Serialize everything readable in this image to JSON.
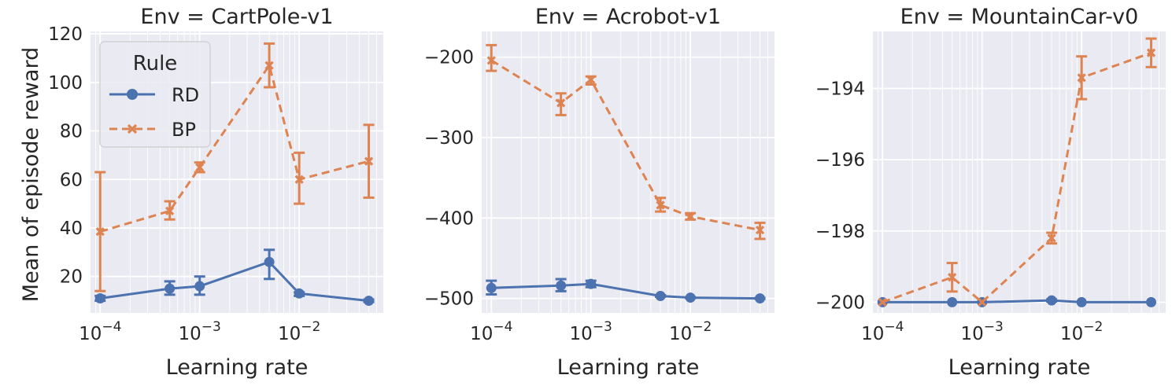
{
  "figure": {
    "ylabel": "Mean of episode reward",
    "legend": {
      "title": "Rule",
      "placement": "upper-left of first panel",
      "entries": [
        {
          "label": "RD",
          "color": "#4c72b0",
          "marker": "circle",
          "linestyle": "solid"
        },
        {
          "label": "BP",
          "color": "#dd8452",
          "marker": "x",
          "linestyle": "dashed"
        }
      ]
    },
    "background": "#eaeaf2"
  },
  "chart_data": [
    {
      "type": "line",
      "title": "Env = CartPole-v1",
      "xlabel": "Learning rate",
      "ylabel": "Mean of episode reward",
      "x_scale": "log",
      "x": [
        0.0001,
        0.0005,
        0.001,
        0.005,
        0.01,
        0.05
      ],
      "xticks": [
        {
          "value": 0.0001,
          "label": "10",
          "exp": "−4"
        },
        {
          "value": 0.001,
          "label": "10",
          "exp": "−3"
        },
        {
          "value": 0.01,
          "label": "10",
          "exp": "−2"
        }
      ],
      "yticks": [
        20,
        40,
        60,
        80,
        100,
        120
      ],
      "ylim": [
        5,
        121
      ],
      "grid": true,
      "series": [
        {
          "name": "RD",
          "values": [
            11,
            15,
            16,
            26,
            13,
            10
          ],
          "err_low": [
            10,
            12.5,
            12.5,
            19,
            12,
            9.5
          ],
          "err_high": [
            12,
            18,
            20,
            31,
            13.5,
            10.5
          ]
        },
        {
          "name": "BP",
          "values": [
            38.5,
            47,
            65,
            107,
            60,
            67.5
          ],
          "err_low": [
            14,
            43.5,
            63,
            98,
            50,
            52.5
          ],
          "err_high": [
            63,
            51,
            67,
            116,
            71,
            82.5
          ]
        }
      ]
    },
    {
      "type": "line",
      "title": "Env = Acrobot-v1",
      "xlabel": "Learning rate",
      "ylabel": "",
      "x_scale": "log",
      "x": [
        0.0001,
        0.0005,
        0.001,
        0.005,
        0.01,
        0.05
      ],
      "xticks": [
        {
          "value": 0.0001,
          "label": "10",
          "exp": "−4"
        },
        {
          "value": 0.001,
          "label": "10",
          "exp": "−3"
        },
        {
          "value": 0.01,
          "label": "10",
          "exp": "−2"
        }
      ],
      "yticks": [
        -500,
        -400,
        -300,
        -200
      ],
      "ytick_labels": [
        "−500",
        "−400",
        "−300",
        "−200"
      ],
      "ylim": [
        -518,
        -168
      ],
      "grid": true,
      "series": [
        {
          "name": "RD",
          "values": [
            -487,
            -484,
            -482,
            -497,
            -499,
            -500
          ],
          "err_low": [
            -495,
            -491,
            -486,
            -498,
            -499.5,
            -500.5
          ],
          "err_high": [
            -478,
            -476,
            -478,
            -496,
            -498.5,
            -499.5
          ]
        },
        {
          "name": "BP",
          "values": [
            -204,
            -257,
            -228,
            -384,
            -398,
            -415
          ],
          "err_low": [
            -217,
            -272,
            -234,
            -392,
            -402,
            -426
          ],
          "err_high": [
            -185,
            -245,
            -224,
            -375,
            -394,
            -406
          ]
        }
      ]
    },
    {
      "type": "line",
      "title": "Env = MountainCar-v0",
      "xlabel": "Learning rate",
      "ylabel": "",
      "x_scale": "log",
      "x": [
        0.0001,
        0.0005,
        0.001,
        0.005,
        0.01,
        0.05
      ],
      "xticks": [
        {
          "value": 0.0001,
          "label": "10",
          "exp": "−4"
        },
        {
          "value": 0.001,
          "label": "10",
          "exp": "−3"
        },
        {
          "value": 0.01,
          "label": "10",
          "exp": "−2"
        }
      ],
      "yticks": [
        -200,
        -198,
        -196,
        -194
      ],
      "ytick_labels": [
        "−200",
        "−198",
        "−196",
        "−194"
      ],
      "ylim": [
        -200.3,
        -192.4
      ],
      "grid": true,
      "series": [
        {
          "name": "RD",
          "values": [
            -200,
            -200,
            -200,
            -199.95,
            -200,
            -200
          ],
          "err_low": [
            -200,
            -200,
            -200,
            -199.98,
            -200,
            -200
          ],
          "err_high": [
            -200,
            -200,
            -200,
            -199.92,
            -200,
            -200
          ]
        },
        {
          "name": "BP",
          "values": [
            -200,
            -199.3,
            -200,
            -198.2,
            -193.7,
            -193
          ],
          "err_low": [
            -200,
            -199.7,
            -200,
            -198.35,
            -194.3,
            -193.4
          ],
          "err_high": [
            -200,
            -198.9,
            -200,
            -198.05,
            -193.1,
            -192.6
          ]
        }
      ]
    }
  ]
}
